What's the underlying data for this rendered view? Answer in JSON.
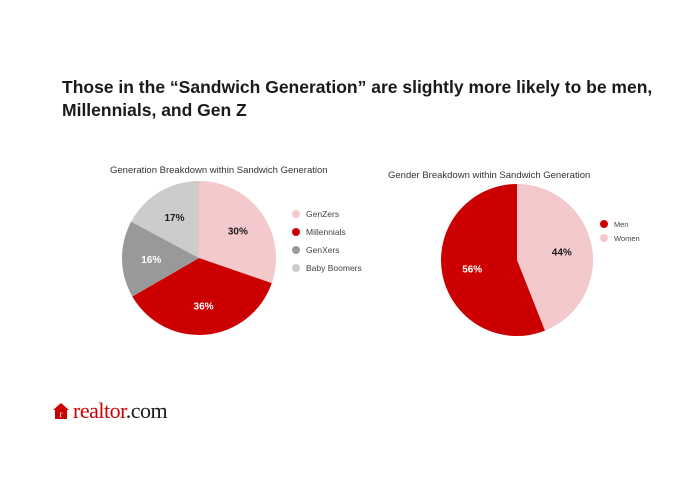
{
  "title": "Those in the “Sandwich Generation” are slightly more likely to be men, Millennials, and Gen Z",
  "chart_data": [
    {
      "type": "pie",
      "title": "Generation Breakdown within Sandwich Generation",
      "categories": [
        "GenZers",
        "Millennials",
        "GenXers",
        "Baby Boomers"
      ],
      "values": [
        30,
        36,
        16,
        17
      ],
      "labels": [
        "30%",
        "36%",
        "16%",
        "17%"
      ],
      "colors": [
        "#f4c9cb",
        "#cc0000",
        "#999999",
        "#cccccc"
      ],
      "label_colors": [
        "#1a1a1a",
        "#ffffff",
        "#ffffff",
        "#1a1a1a"
      ],
      "legend": "right"
    },
    {
      "type": "pie",
      "title": "Gender Breakdown within Sandwich Generation",
      "categories": [
        "Women",
        "Men"
      ],
      "legend_order": [
        "Men",
        "Women"
      ],
      "values": [
        44,
        56
      ],
      "labels": [
        "44%",
        "56%"
      ],
      "colors": [
        "#f4c9cb",
        "#cc0000"
      ],
      "label_colors": [
        "#1a1a1a",
        "#ffffff"
      ],
      "legend": "right"
    }
  ],
  "logo": {
    "brand": "realtor",
    "suffix": ".com"
  }
}
